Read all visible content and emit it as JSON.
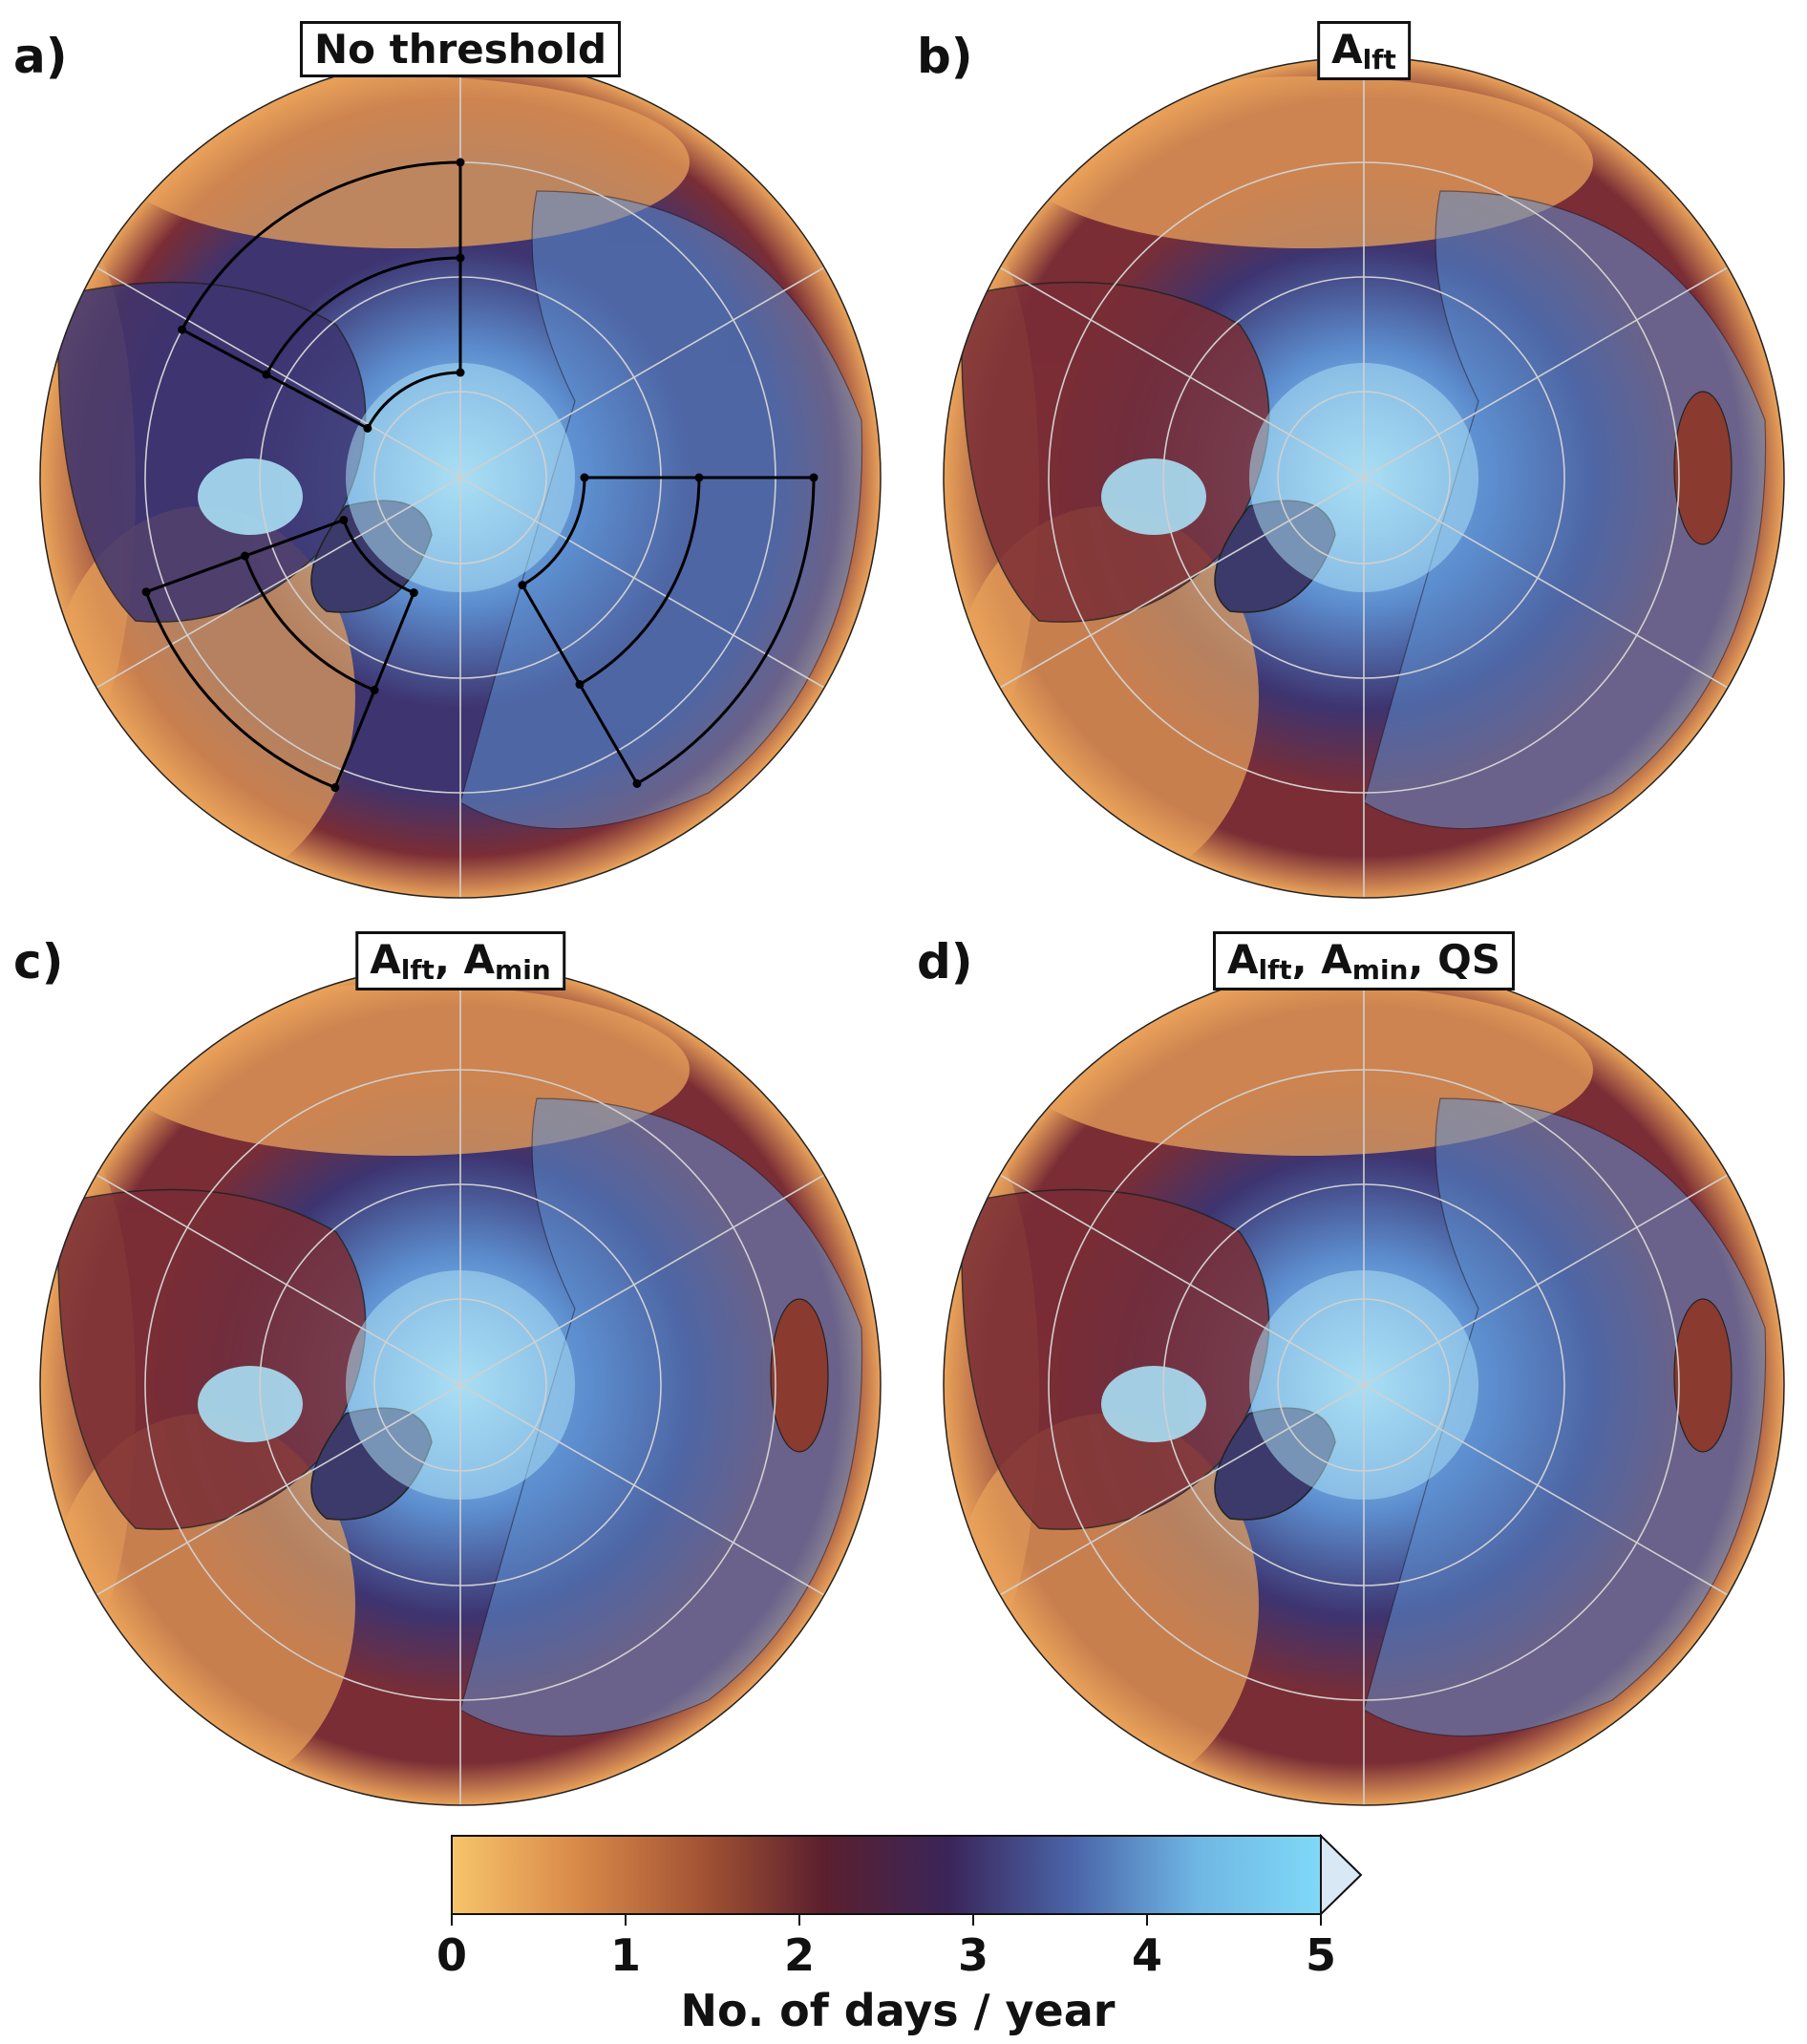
{
  "panels": [
    {
      "letter": "a)",
      "title_main": "No threshold",
      "title_parts": []
    },
    {
      "letter": "b)",
      "title_main": "A",
      "title_parts": [
        {
          "base": "A",
          "sub": "lft"
        }
      ]
    },
    {
      "letter": "c)",
      "title_main": "",
      "title_parts": [
        {
          "base": "A",
          "sub": "lft"
        },
        {
          "base": "A",
          "sub": "min"
        }
      ]
    },
    {
      "letter": "d)",
      "title_main": "",
      "title_parts": [
        {
          "base": "A",
          "sub": "lft"
        },
        {
          "base": "A",
          "sub": "min"
        },
        {
          "base": "QS",
          "sub": ""
        }
      ]
    }
  ],
  "colorbar": {
    "label": "No. of days / year",
    "ticks": [
      "0",
      "1",
      "2",
      "3",
      "4",
      "5"
    ],
    "min": 0,
    "max": 5,
    "extend": "max",
    "colors": [
      "#f7c46a",
      "#d98a4a",
      "#a45433",
      "#5b1f2e",
      "#3a2559",
      "#4a64a8",
      "#6fb6e4",
      "#7fd9f7"
    ],
    "over_color": "#d9e8f5"
  },
  "map_colors": {
    "ocean_warm": "#e9a25a",
    "ocean_mid": "#7a2d35",
    "ocean_cool": "#3d3470",
    "land_blue": "#5d8fd0",
    "land_light": "#a9dff4",
    "ice": "#dbe9f5",
    "grid": "#d0d0d0"
  }
}
